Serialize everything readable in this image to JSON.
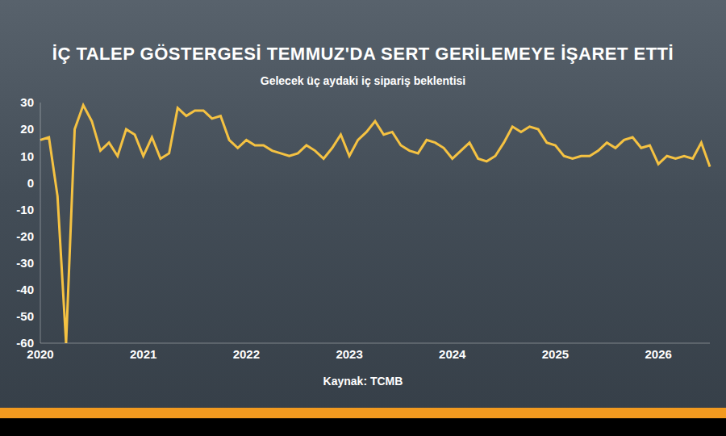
{
  "chart_data": {
    "type": "line",
    "title": "İÇ TALEP GÖSTERGESİ TEMMUZ'DA SERT GERİLEMEYE İŞARET ETTİ",
    "subtitle": "Gelecek üç aydaki iç sipariş beklentisi",
    "source": "Kaynak: TCMB",
    "categories": [
      "2020",
      null,
      null,
      null,
      null,
      null,
      null,
      null,
      null,
      null,
      null,
      null,
      "2021",
      null,
      null,
      null,
      null,
      null,
      null,
      null,
      null,
      null,
      null,
      null,
      "2022",
      null,
      null,
      null,
      null,
      null,
      null,
      null,
      null,
      null,
      null,
      null,
      "2023",
      null,
      null,
      null,
      null,
      null,
      null,
      null,
      null,
      null,
      null,
      null,
      "2024",
      null,
      null,
      null,
      null,
      null,
      null,
      null,
      null,
      null,
      null,
      null,
      "2025",
      null,
      null,
      null,
      null,
      null,
      null,
      null,
      null,
      null,
      null,
      null,
      "2026",
      null,
      null,
      null,
      null,
      null,
      null
    ],
    "values": [
      16,
      17,
      -5,
      -60,
      20,
      29,
      23,
      12,
      15,
      10,
      20,
      18,
      10,
      17,
      9,
      11,
      28,
      25,
      27,
      27,
      24,
      25,
      16,
      13,
      16,
      14,
      14,
      12,
      11,
      10,
      11,
      14,
      12,
      9,
      13,
      18,
      10,
      16,
      19,
      23,
      18,
      19,
      14,
      12,
      11,
      16,
      15,
      13,
      9,
      12,
      15,
      9,
      8,
      10,
      15,
      21,
      19,
      21,
      20,
      15,
      14,
      10,
      9,
      10,
      10,
      12,
      15,
      13,
      16,
      17,
      13,
      14,
      7,
      10,
      9,
      10,
      9,
      15,
      6
    ],
    "color": "#f5c242",
    "ylim": [
      -60,
      30
    ],
    "yticks": [
      -60,
      -50,
      -40,
      -30,
      -20,
      -10,
      0,
      10,
      20,
      30
    ],
    "grid": false,
    "tick_labels": true
  }
}
